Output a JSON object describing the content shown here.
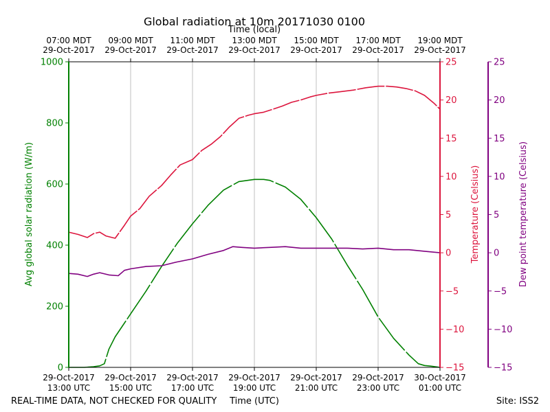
{
  "chart_data": {
    "type": "line",
    "title": "Global radiation at 10m 20171030 0100",
    "top_xlabel": "Time (local)",
    "xlabel": "Time (UTC)",
    "ylabel_left": "Avg global solar radiation (W/m)",
    "ylabel_right": "Temperature (Celsius)",
    "ylabel_right2": "Dew point temperature (Celsius)",
    "footer_left": "REAL-TIME DATA, NOT CHECKED FOR QUALITY",
    "footer_right": "Site: ISS2",
    "colors": {
      "radiation": "#008000",
      "temperature": "#dc143c",
      "dewpoint": "#800080",
      "grid": "#b0b0b0"
    },
    "x_range_utc_hours": [
      13,
      25
    ],
    "ylim_left": [
      0,
      1000
    ],
    "ylim_right": [
      -15,
      25
    ],
    "yticks_left": [
      0,
      200,
      400,
      600,
      800,
      1000
    ],
    "yticks_right": [
      25,
      20,
      15,
      10,
      5,
      0,
      -5,
      -10,
      -15
    ],
    "ytick_right_labels": [
      "25",
      "20",
      "15",
      "10",
      "5",
      "0",
      "−5",
      "−10",
      "−15"
    ],
    "bottom_ticks": [
      {
        "x": 13,
        "line1": "29-Oct-2017",
        "line2": "13:00 UTC"
      },
      {
        "x": 15,
        "line1": "29-Oct-2017",
        "line2": "15:00 UTC"
      },
      {
        "x": 17,
        "line1": "29-Oct-2017",
        "line2": "17:00 UTC"
      },
      {
        "x": 19,
        "line1": "29-Oct-2017",
        "line2": "19:00 UTC"
      },
      {
        "x": 21,
        "line1": "29-Oct-2017",
        "line2": "21:00 UTC"
      },
      {
        "x": 23,
        "line1": "29-Oct-2017",
        "line2": "23:00 UTC"
      },
      {
        "x": 25,
        "line1": "30-Oct-2017",
        "line2": "01:00 UTC"
      }
    ],
    "top_ticks": [
      {
        "x": 13,
        "line1": "07:00 MDT",
        "line2": "29-Oct-2017"
      },
      {
        "x": 15,
        "line1": "09:00 MDT",
        "line2": "29-Oct-2017"
      },
      {
        "x": 17,
        "line1": "11:00 MDT",
        "line2": "29-Oct-2017"
      },
      {
        "x": 19,
        "line1": "13:00 MDT",
        "line2": "29-Oct-2017"
      },
      {
        "x": 21,
        "line1": "15:00 MDT",
        "line2": "29-Oct-2017"
      },
      {
        "x": 23,
        "line1": "17:00 MDT",
        "line2": "29-Oct-2017"
      },
      {
        "x": 25,
        "line1": "19:00 MDT",
        "line2": "29-Oct-2017"
      }
    ],
    "series": [
      {
        "name": "Avg global solar radiation",
        "axis": "left",
        "x": [
          13.0,
          13.5,
          13.8,
          14.0,
          14.15,
          14.3,
          14.5,
          15.0,
          15.5,
          16.0,
          16.5,
          17.0,
          17.5,
          18.0,
          18.5,
          19.0,
          19.3,
          19.5,
          20.0,
          20.5,
          21.0,
          21.5,
          22.0,
          22.5,
          23.0,
          23.5,
          24.0,
          24.3,
          24.5,
          24.7,
          25.0
        ],
        "values": [
          0,
          0,
          2,
          5,
          12,
          60,
          100,
          175,
          250,
          330,
          405,
          470,
          530,
          580,
          608,
          615,
          615,
          612,
          590,
          550,
          490,
          420,
          335,
          255,
          165,
          95,
          40,
          12,
          6,
          4,
          0
        ]
      },
      {
        "name": "Temperature",
        "axis": "right",
        "x": [
          13.0,
          13.3,
          13.6,
          13.8,
          14.0,
          14.2,
          14.5,
          14.8,
          15.0,
          15.3,
          15.6,
          16.0,
          16.3,
          16.6,
          17.0,
          17.3,
          17.6,
          17.9,
          18.2,
          18.5,
          18.8,
          19.0,
          19.3,
          19.6,
          19.9,
          20.2,
          20.5,
          20.8,
          21.0,
          21.4,
          21.8,
          22.2,
          22.6,
          23.0,
          23.3,
          23.6,
          23.9,
          24.2,
          24.5,
          24.8,
          25.0
        ],
        "values": [
          2.7,
          2.4,
          2.0,
          2.5,
          2.7,
          2.2,
          1.9,
          3.6,
          4.8,
          5.8,
          7.4,
          8.8,
          10.2,
          11.5,
          12.2,
          13.4,
          14.2,
          15.2,
          16.5,
          17.6,
          18.0,
          18.2,
          18.4,
          18.8,
          19.2,
          19.7,
          20.0,
          20.4,
          20.6,
          20.9,
          21.1,
          21.3,
          21.6,
          21.8,
          21.8,
          21.7,
          21.5,
          21.2,
          20.6,
          19.6,
          18.8
        ]
      },
      {
        "name": "Dew point temperature",
        "axis": "right2",
        "x": [
          13.0,
          13.3,
          13.6,
          13.8,
          14.0,
          14.3,
          14.6,
          14.8,
          15.0,
          15.5,
          16.0,
          16.5,
          17.0,
          17.5,
          18.0,
          18.3,
          18.6,
          19.0,
          19.5,
          20.0,
          20.5,
          21.0,
          21.5,
          22.0,
          22.5,
          23.0,
          23.5,
          24.0,
          24.5,
          25.0
        ],
        "values": [
          -2.7,
          -2.8,
          -3.1,
          -2.8,
          -2.6,
          -2.9,
          -3.0,
          -2.3,
          -2.1,
          -1.8,
          -1.7,
          -1.2,
          -0.8,
          -0.2,
          0.3,
          0.8,
          0.7,
          0.6,
          0.7,
          0.8,
          0.6,
          0.6,
          0.6,
          0.6,
          0.5,
          0.6,
          0.4,
          0.4,
          0.2,
          0.0
        ]
      }
    ]
  }
}
